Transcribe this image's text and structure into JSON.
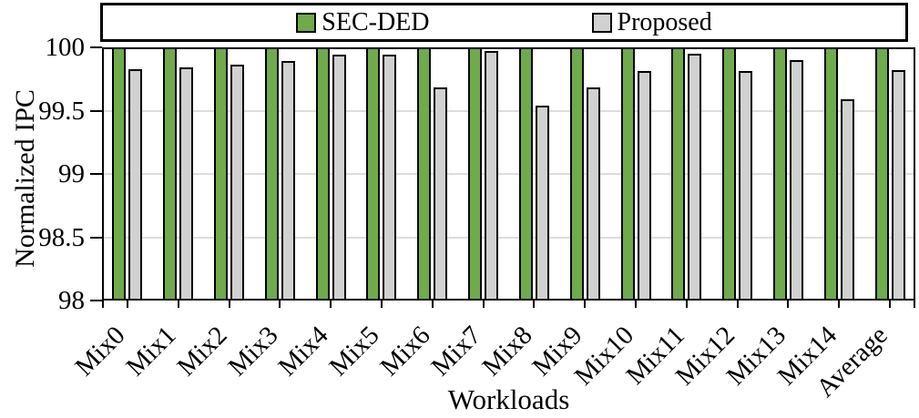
{
  "chart_data": {
    "type": "bar",
    "title": "",
    "xlabel": "Workloads",
    "ylabel": "Normalized IPC",
    "ylim": [
      98,
      100
    ],
    "yticks": [
      98,
      98.5,
      99,
      99.5,
      100
    ],
    "ytick_labels": [
      "98",
      "98.5",
      "99",
      "99.5",
      "100"
    ],
    "gridlines_at": [
      98.5,
      99,
      99.5
    ],
    "grid": "horizontal",
    "legend_position": "top",
    "categories": [
      "Mix0",
      "Mix1",
      "Mix2",
      "Mix3",
      "Mix4",
      "Mix5",
      "Mix6",
      "Mix7",
      "Mix8",
      "Mix9",
      "Mix10",
      "Mix11",
      "Mix12",
      "Mix13",
      "Mix14",
      "Average"
    ],
    "series": [
      {
        "name": "SEC-DED",
        "color": "#6faa4b",
        "values": [
          100,
          100,
          100,
          100,
          100,
          100,
          100,
          100,
          100,
          100,
          100,
          100,
          100,
          100,
          100,
          100
        ]
      },
      {
        "name": "Proposed",
        "color": "#d1d1d1",
        "values": [
          99.83,
          99.84,
          99.86,
          99.89,
          99.94,
          99.94,
          99.68,
          99.97,
          99.54,
          99.68,
          99.81,
          99.95,
          99.81,
          99.9,
          99.59,
          99.82
        ]
      }
    ]
  },
  "colors": {
    "axis": "#000000",
    "gridline": "#dcdcdc",
    "background": "#ffffff"
  }
}
